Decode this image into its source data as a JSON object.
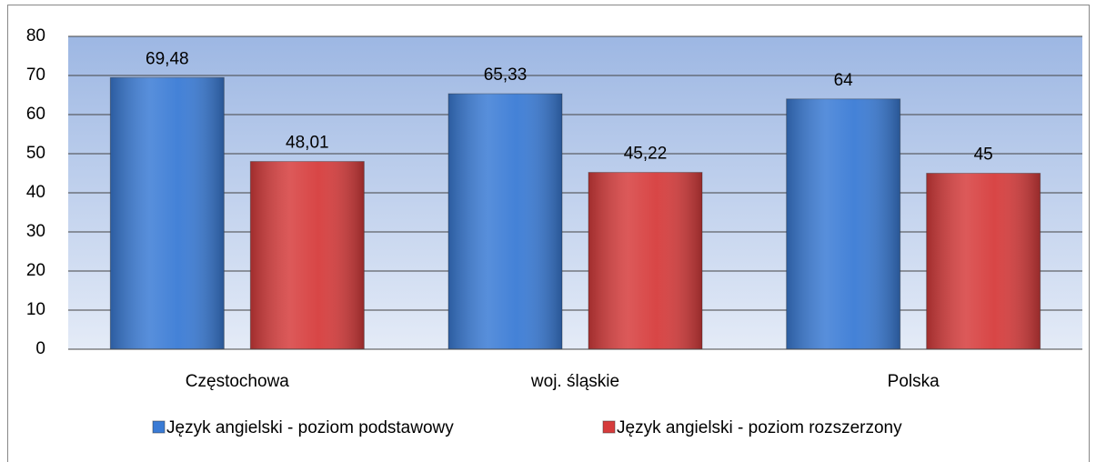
{
  "chart_data": {
    "type": "bar",
    "categories": [
      "Częstochowa",
      "woj. śląskie",
      "Polska"
    ],
    "series": [
      {
        "name": "Język angielski - poziom podstawowy",
        "color": "#3a7bd5",
        "values": [
          69.48,
          65.33,
          64
        ],
        "value_labels": [
          "69,48",
          "65,33",
          "64"
        ]
      },
      {
        "name": "Język angielski - poziom rozszerzony",
        "color": "#d63c3c",
        "values": [
          48.01,
          45.22,
          45
        ],
        "value_labels": [
          "48,01",
          "45,22",
          "45"
        ]
      }
    ],
    "ylim": [
      0,
      80
    ],
    "yticks": [
      0,
      10,
      20,
      30,
      40,
      50,
      60,
      70,
      80
    ],
    "grid": true,
    "legend": "bottom"
  }
}
